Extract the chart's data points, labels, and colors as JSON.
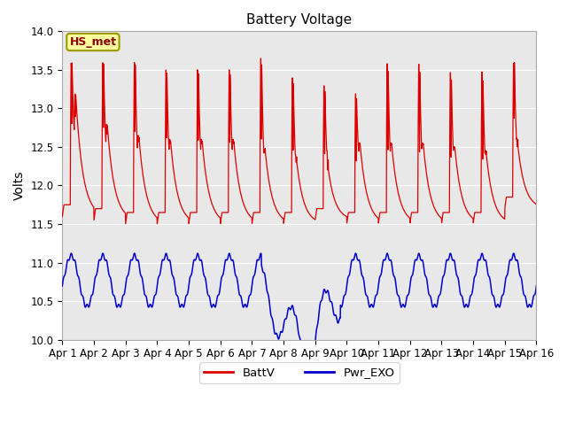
{
  "title": "Battery Voltage",
  "ylabel": "Volts",
  "ylim": [
    10.0,
    14.0
  ],
  "yticks": [
    10.0,
    10.5,
    11.0,
    11.5,
    12.0,
    12.5,
    13.0,
    13.5,
    14.0
  ],
  "xtick_labels": [
    "Apr 1",
    "Apr 2",
    "Apr 3",
    "Apr 4",
    "Apr 5",
    "Apr 6",
    "Apr 7",
    "Apr 8",
    "Apr 9",
    "Apr 10",
    "Apr 11",
    "Apr 12",
    "Apr 13",
    "Apr 14",
    "Apr 15",
    "Apr 16"
  ],
  "xtick_positions": [
    0,
    1,
    2,
    3,
    4,
    5,
    6,
    7,
    8,
    9,
    10,
    11,
    12,
    13,
    14,
    15
  ],
  "batt_color": "#dd0000",
  "exo_color": "#0000cc",
  "legend_label1": "BattV",
  "legend_label2": "Pwr_EXO",
  "annotation": "HS_met",
  "background_color": "#e8e8e8",
  "title_fontsize": 11,
  "axis_label_fontsize": 10,
  "tick_fontsize": 8.5,
  "grid_color": "#ffffff",
  "spine_color": "#aaaaaa"
}
